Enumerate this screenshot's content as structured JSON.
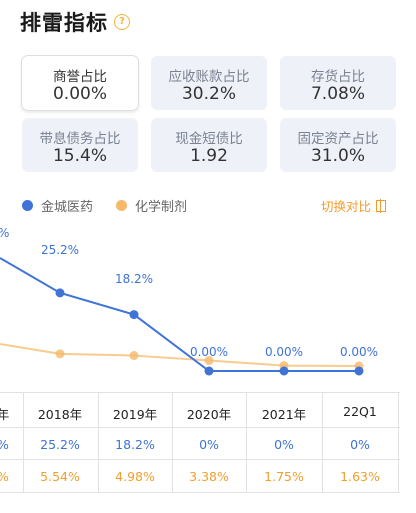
{
  "title": "排雷指标",
  "help_icon_glyph": "?",
  "metrics": [
    {
      "label": "商誉占比",
      "value": "0.00%"
    },
    {
      "label": "应收账款占比",
      "value": "30.2%"
    },
    {
      "label": "存货占比",
      "value": "7.08%"
    },
    {
      "label": "带息债务占比",
      "value": "15.4%"
    },
    {
      "label": "现金短债比",
      "value": "1.92"
    },
    {
      "label": "固定资产占比",
      "value": "31.0%"
    }
  ],
  "legend": {
    "series1": "金城医药",
    "series2": "化学制剂",
    "switch_label": "切换对比",
    "colors": {
      "series1": "#3f73d6",
      "series2": "#f5b96a"
    }
  },
  "chart_data": {
    "type": "line",
    "categories": [
      "",
      "2018年",
      "2019年",
      "2020年",
      "2021年",
      "22Q1"
    ],
    "series": [
      {
        "name": "金城医药",
        "values": [
          null,
          25.2,
          18.2,
          0,
          0,
          0
        ],
        "labels": [
          "%",
          "25.2%",
          "18.2%",
          "0.00%",
          "0.00%",
          "0.00%"
        ]
      },
      {
        "name": "化学制剂",
        "values": [
          null,
          5.54,
          4.98,
          3.38,
          1.75,
          1.63
        ]
      }
    ]
  },
  "table": {
    "headers": [
      "年",
      "2018年",
      "2019年",
      "2020年",
      "2021年",
      "22Q1"
    ],
    "row1": [
      "%",
      "25.2%",
      "18.2%",
      "0%",
      "0%",
      "0%"
    ],
    "row2": [
      "%",
      "5.54%",
      "4.98%",
      "3.38%",
      "1.75%",
      "1.63%"
    ]
  }
}
